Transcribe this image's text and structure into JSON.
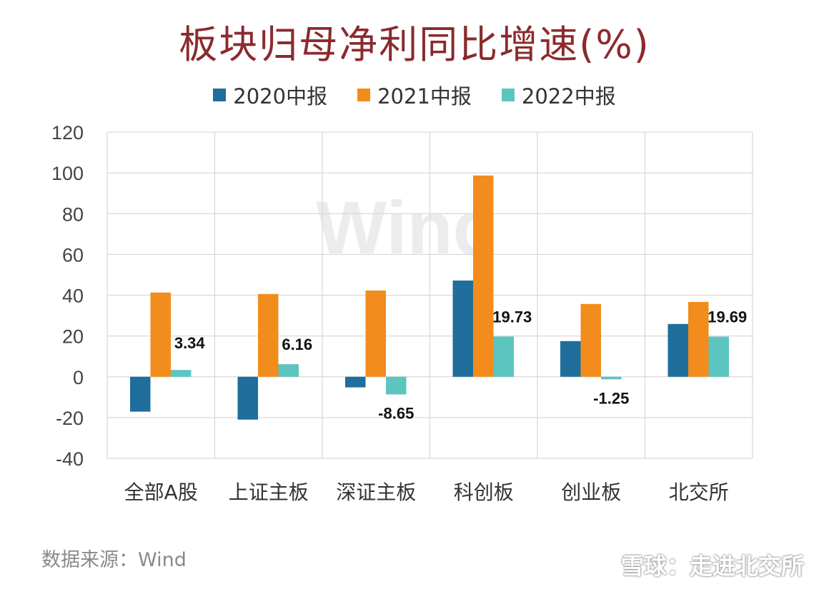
{
  "chart_data": {
    "type": "bar",
    "title": "板块归母净利同比增速(%)",
    "categories": [
      "全部A股",
      "上证主板",
      "深证主板",
      "科创板",
      "创业板",
      "北交所"
    ],
    "series": [
      {
        "name": "2020中报",
        "color": "#1f6e9c",
        "values": [
          -17.1,
          -21.0,
          -5.2,
          47.2,
          17.5,
          25.9
        ]
      },
      {
        "name": "2021中报",
        "color": "#f28c1c",
        "values": [
          41.3,
          40.6,
          42.3,
          98.7,
          35.7,
          36.7
        ]
      },
      {
        "name": "2022中报",
        "color": "#5cc5c0",
        "values": [
          3.34,
          6.16,
          -8.65,
          19.73,
          -1.25,
          19.69
        ]
      }
    ],
    "data_labels": [
      "3.34",
      "6.16",
      "-8.65",
      "19.73",
      "-1.25",
      "19.69"
    ],
    "yticks": [
      "120",
      "100",
      "80",
      "60",
      "40",
      "20",
      "0",
      "-20",
      "-40"
    ],
    "ylim": [
      -40,
      120
    ],
    "grid": true,
    "legend": "top",
    "xlabel": "",
    "ylabel": ""
  },
  "source": "数据来源：Wind",
  "watermark_logo": "Wind",
  "watermark": "雪球：走进北交所"
}
